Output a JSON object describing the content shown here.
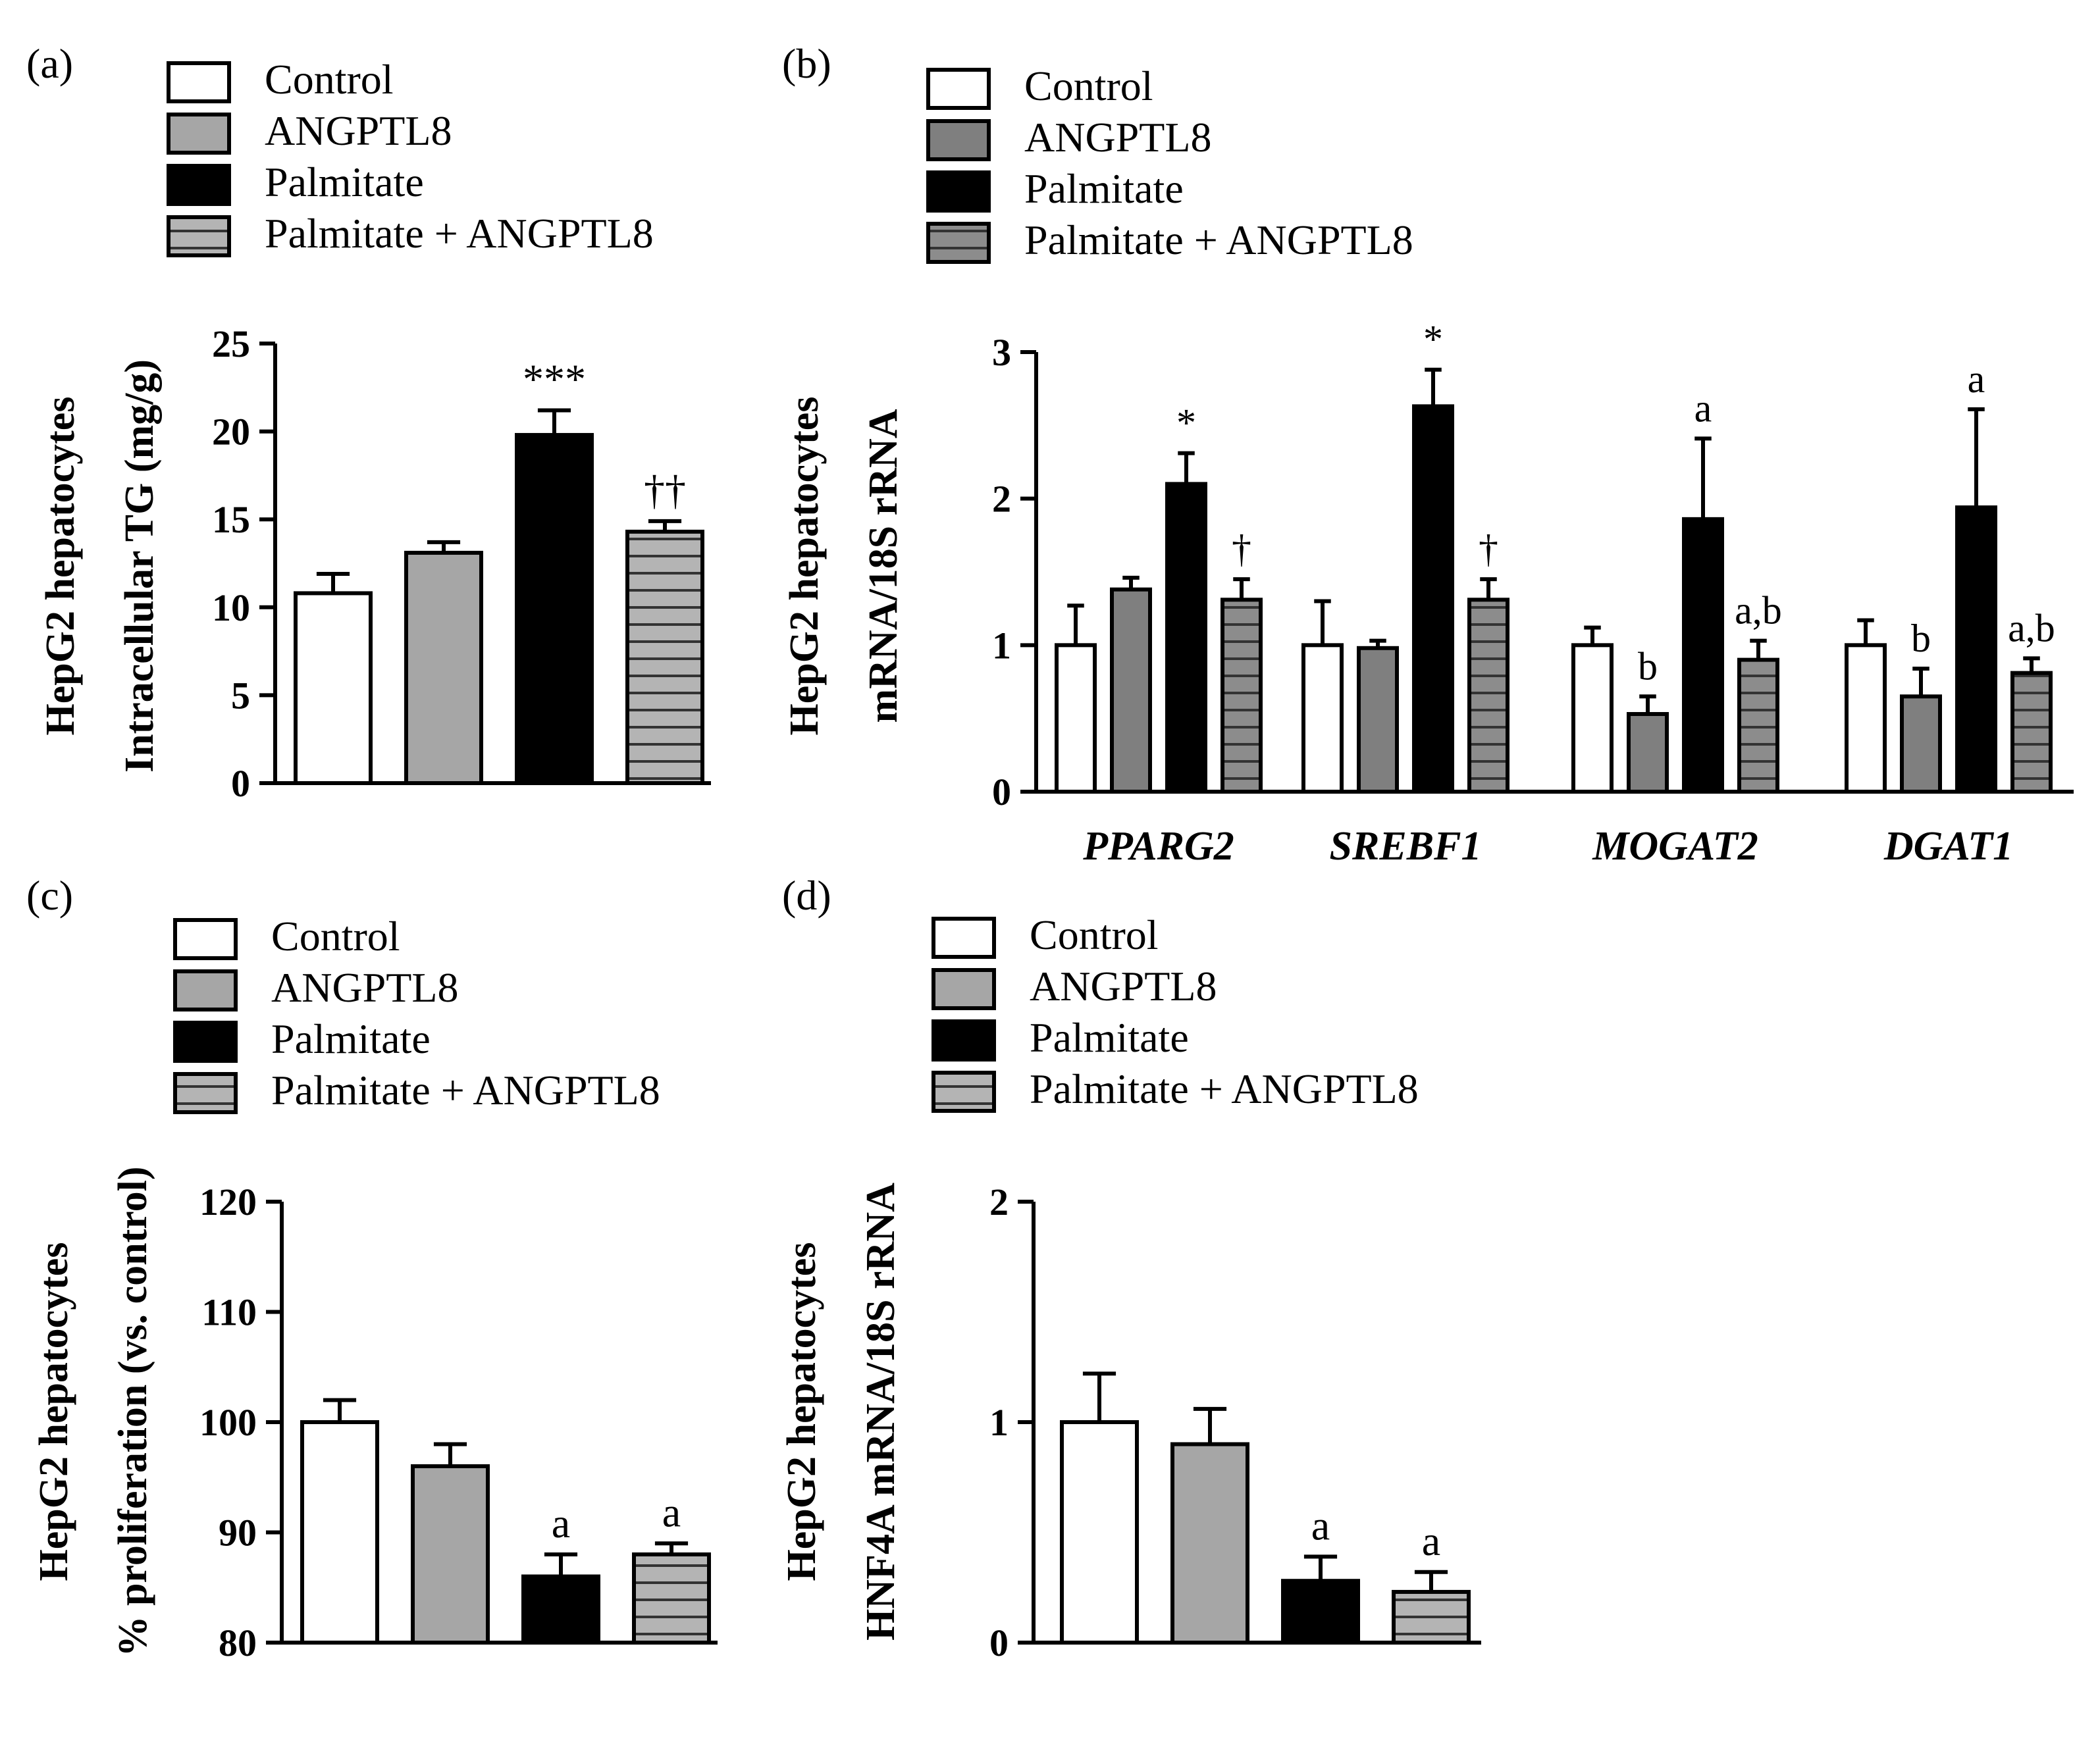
{
  "legend_labels": [
    "Control",
    "ANGPTL8",
    "Palmitate",
    "Palmitate + ANGPTL8"
  ],
  "colors": {
    "control": "#ffffff",
    "angptl8": "#a6a6a6",
    "angptl8_b": "#7f7f7f",
    "palmitate": "#000000",
    "hatch_bg_light": "#b4b4b4",
    "hatch_bg_dark": "#8c8c8c",
    "hatch_line": "#333333",
    "ink": "#000000"
  },
  "chart_data": [
    {
      "id": "a",
      "panel_label": "(a)",
      "type": "bar",
      "ylabel_lines": [
        "HepG2 hepatocytes",
        "Intracellular TG (mg/g)"
      ],
      "ylim": [
        0,
        25
      ],
      "yticks": [
        0,
        5,
        10,
        15,
        20,
        25
      ],
      "categories": [
        "Control",
        "ANGPTL8",
        "Palmitate",
        "Palmitate + ANGPTL8"
      ],
      "values": [
        10.8,
        13.1,
        19.8,
        14.3
      ],
      "errors": [
        1.1,
        0.6,
        1.4,
        0.6
      ],
      "annotations": [
        "",
        "",
        "***",
        "††"
      ]
    },
    {
      "id": "b",
      "panel_label": "(b)",
      "type": "bar",
      "ylabel_lines": [
        "HepG2 hepatocytes",
        "mRNA/18S rRNA"
      ],
      "ylim": [
        0,
        3
      ],
      "yticks": [
        0,
        1,
        2,
        3
      ],
      "categories": [
        "PPARG2",
        "SREBF1",
        "MOGAT2",
        "DGAT1"
      ],
      "series": [
        {
          "name": "Control",
          "values": [
            1.0,
            1.0,
            1.0,
            1.0
          ],
          "errors": [
            0.27,
            0.3,
            0.12,
            0.17
          ],
          "annotations": [
            "",
            "",
            "",
            ""
          ]
        },
        {
          "name": "ANGPTL8",
          "values": [
            1.38,
            0.98,
            0.53,
            0.65
          ],
          "errors": [
            0.08,
            0.05,
            0.12,
            0.19
          ],
          "annotations": [
            "",
            "",
            "b",
            "b"
          ]
        },
        {
          "name": "Palmitate",
          "values": [
            2.1,
            2.63,
            1.86,
            1.94
          ],
          "errors": [
            0.21,
            0.25,
            0.55,
            0.67
          ],
          "annotations": [
            "*",
            "*",
            "a",
            "a"
          ]
        },
        {
          "name": "Palmitate + ANGPTL8",
          "values": [
            1.31,
            1.31,
            0.9,
            0.81
          ],
          "errors": [
            0.14,
            0.14,
            0.13,
            0.1
          ],
          "annotations": [
            "†",
            "†",
            "a,b",
            "a,b"
          ]
        }
      ]
    },
    {
      "id": "c",
      "panel_label": "(c)",
      "type": "bar",
      "ylabel_lines": [
        "HepG2 hepatocytes",
        "% proliferation (vs. control)"
      ],
      "ylim": [
        80,
        120
      ],
      "yticks": [
        80,
        90,
        100,
        110,
        120
      ],
      "categories": [
        "Control",
        "ANGPTL8",
        "Palmitate",
        "Palmitate + ANGPTL8"
      ],
      "values": [
        100,
        96,
        86,
        88
      ],
      "errors": [
        2.0,
        2.0,
        2.0,
        1.0
      ],
      "annotations": [
        "",
        "",
        "a",
        "a"
      ]
    },
    {
      "id": "d",
      "panel_label": "(d)",
      "type": "bar",
      "ylabel_lines": [
        "HepG2 hepatocytes",
        "HNF4A mRNA/18S rRNA"
      ],
      "ylim": [
        0,
        2
      ],
      "yticks": [
        0,
        1,
        2
      ],
      "categories": [
        "Control",
        "ANGPTL8",
        "Palmitate",
        "Palmitate + ANGPTL8"
      ],
      "values": [
        1.0,
        0.9,
        0.28,
        0.23
      ],
      "errors": [
        0.22,
        0.16,
        0.11,
        0.09
      ],
      "annotations": [
        "",
        "",
        "a",
        "a"
      ]
    }
  ]
}
